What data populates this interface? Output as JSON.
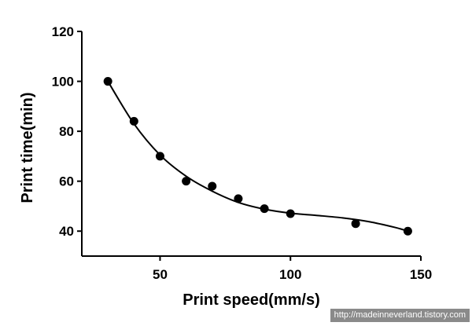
{
  "chart_data": {
    "type": "scatter",
    "xlabel": "Print speed(mm/s)",
    "ylabel": "Print time(min)",
    "xlim": [
      20,
      150
    ],
    "ylim": [
      30,
      120
    ],
    "x_ticks": [
      50,
      100,
      150
    ],
    "y_ticks": [
      40,
      60,
      80,
      100,
      120
    ],
    "grid": false,
    "legend": "none",
    "series": [
      {
        "points": [
          {
            "x": 30,
            "y": 100
          },
          {
            "x": 40,
            "y": 84
          },
          {
            "x": 50,
            "y": 70
          },
          {
            "x": 60,
            "y": 60
          },
          {
            "x": 70,
            "y": 58
          },
          {
            "x": 80,
            "y": 53
          },
          {
            "x": 90,
            "y": 49
          },
          {
            "x": 100,
            "y": 47
          },
          {
            "x": 125,
            "y": 43
          },
          {
            "x": 145,
            "y": 40
          }
        ],
        "fit_curve": [
          {
            "x": 30,
            "y": 100
          },
          {
            "x": 40,
            "y": 83
          },
          {
            "x": 50,
            "y": 70.5
          },
          {
            "x": 60,
            "y": 62
          },
          {
            "x": 70,
            "y": 56
          },
          {
            "x": 80,
            "y": 51.5
          },
          {
            "x": 90,
            "y": 48.8
          },
          {
            "x": 100,
            "y": 47.2
          },
          {
            "x": 110,
            "y": 46.3
          },
          {
            "x": 120,
            "y": 45.3
          },
          {
            "x": 130,
            "y": 43.8
          },
          {
            "x": 140,
            "y": 41.5
          },
          {
            "x": 145,
            "y": 40
          }
        ]
      }
    ]
  },
  "watermark": "http://madeinneverland.tistory.com",
  "colors": {
    "ink": "#000000",
    "watermark_bg": "#8a8a8a"
  }
}
